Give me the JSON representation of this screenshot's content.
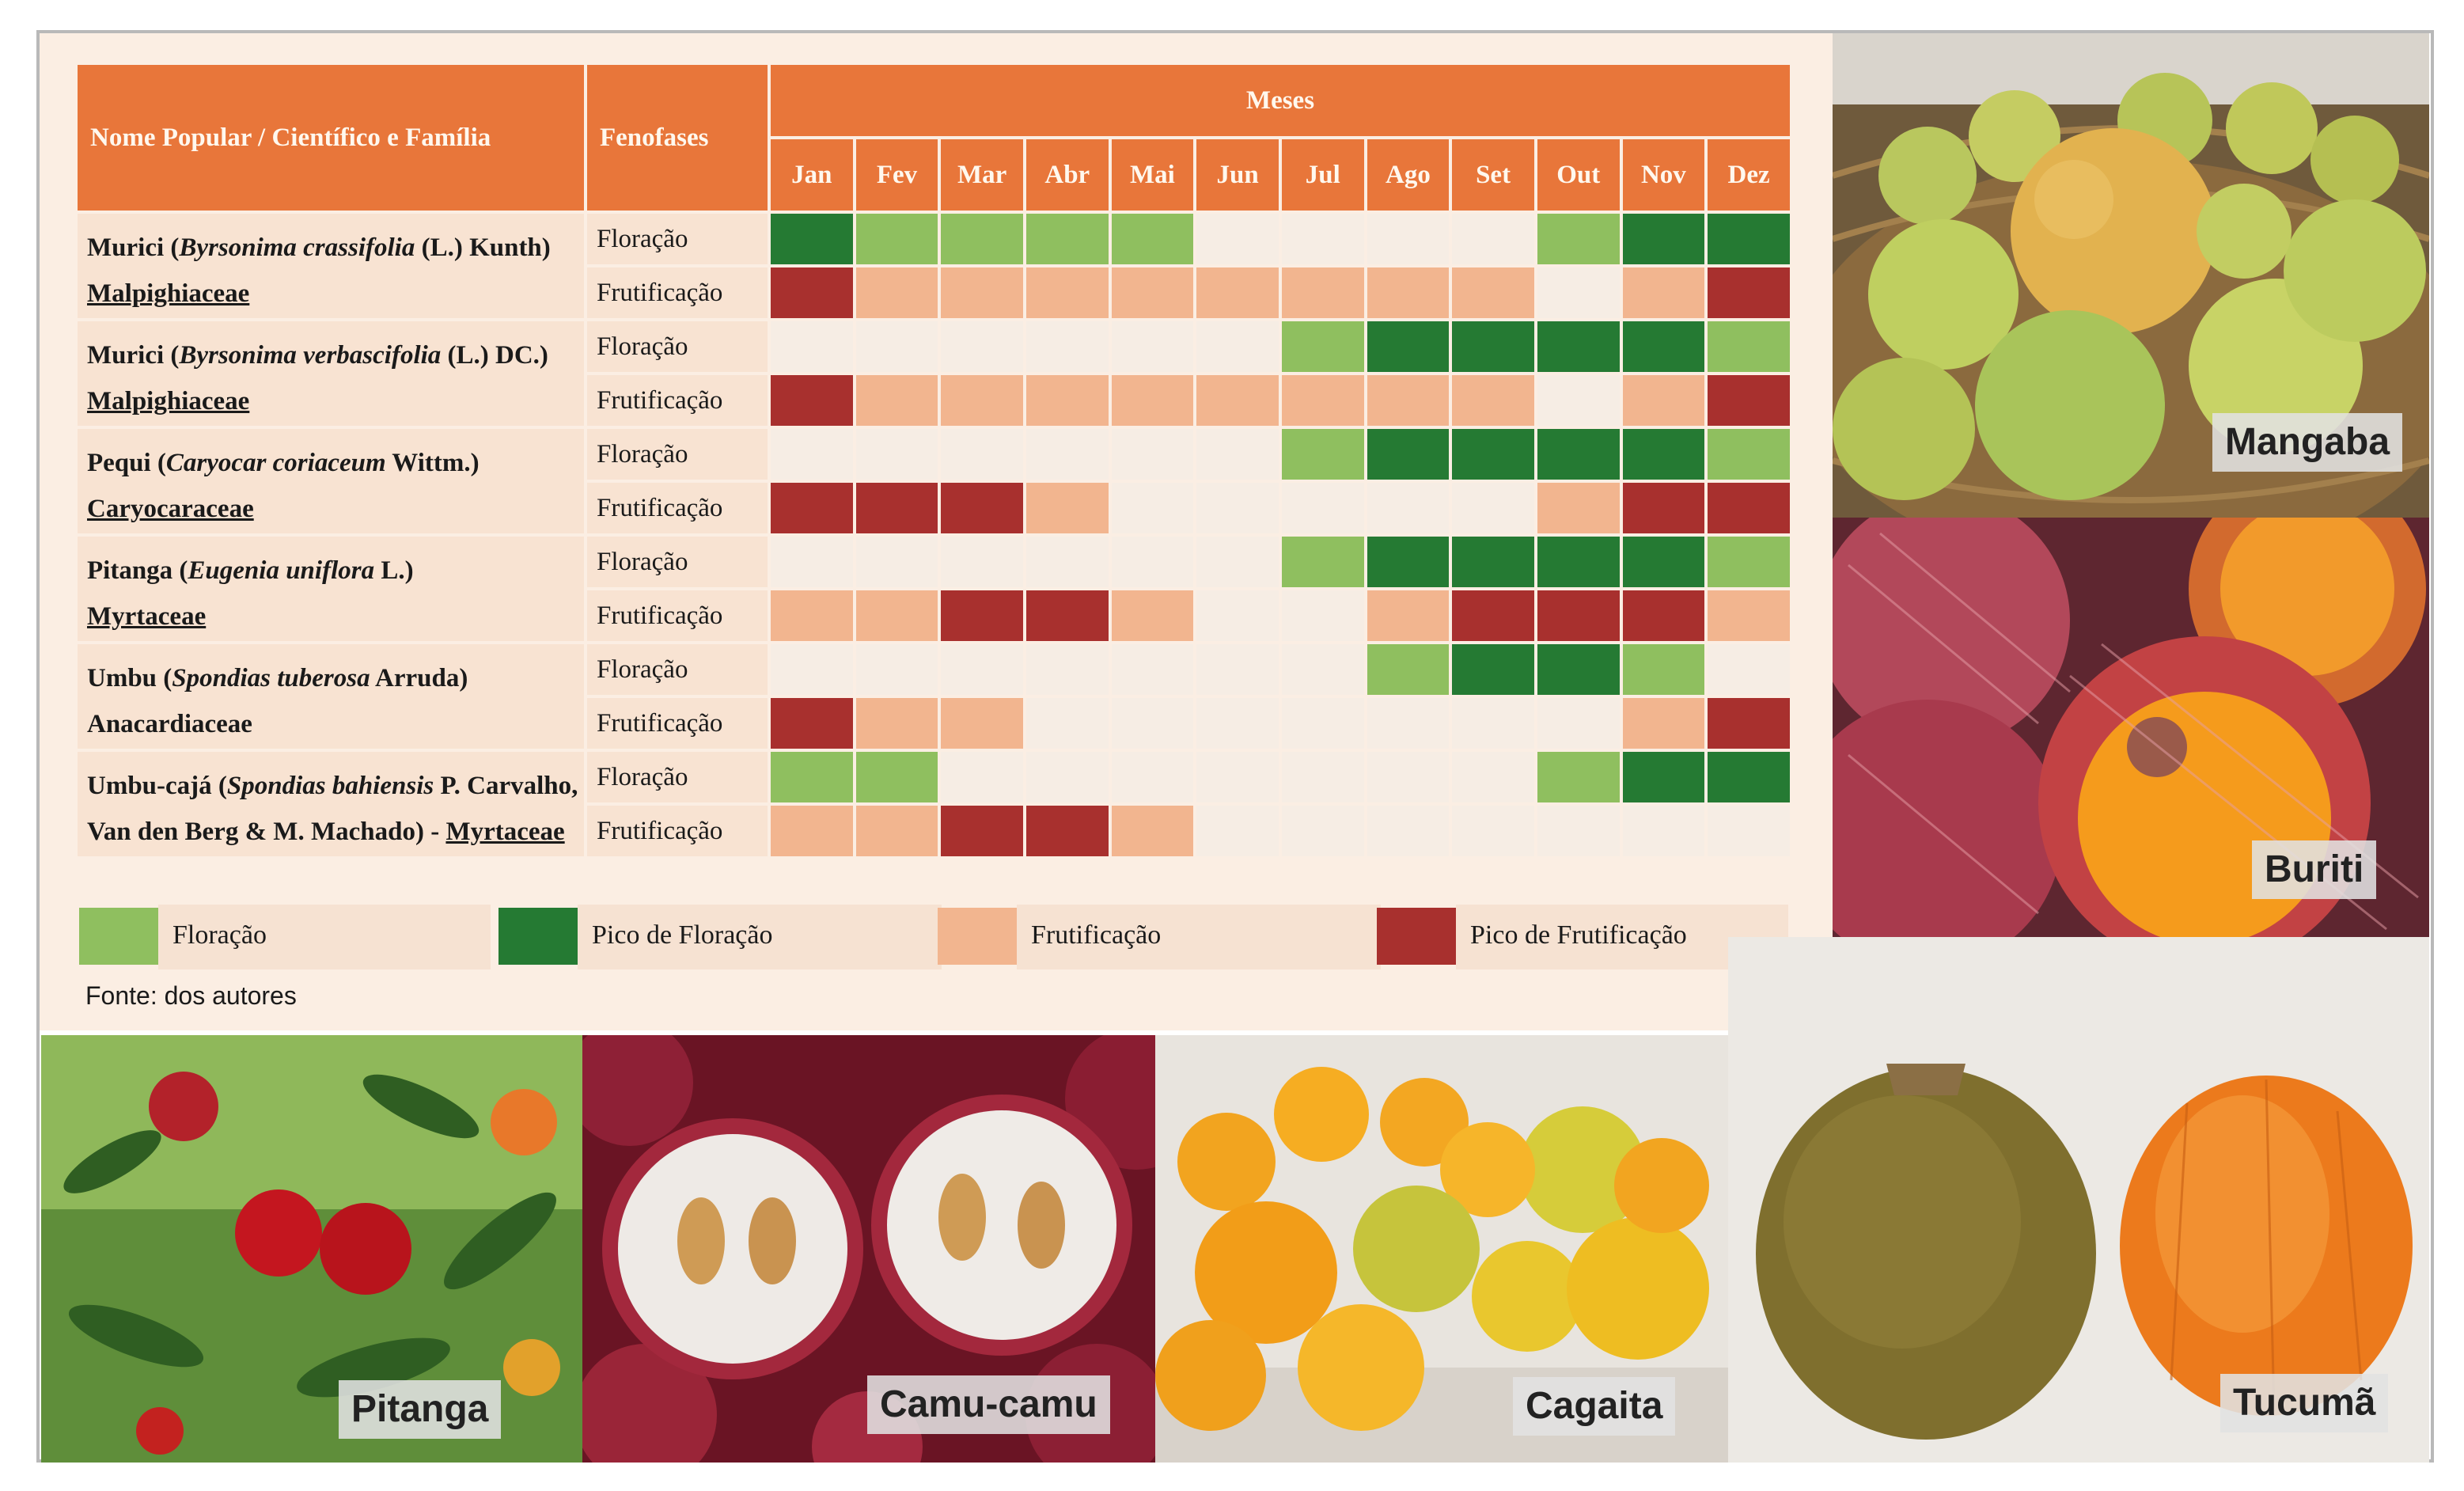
{
  "table": {
    "header_name": "Nome Popular / Científico e Família",
    "header_phase": "Fenofases",
    "header_months": "Meses",
    "months": [
      "Jan",
      "Fev",
      "Mar",
      "Abr",
      "Mai",
      "Jun",
      "Jul",
      "Ago",
      "Set",
      "Out",
      "Nov",
      "Dez"
    ],
    "species": [
      {
        "common": "Murici (",
        "sci": "Byrsonima crassifolia",
        "auth": " (L.) Kunth)",
        "family": "Malpighiaceae",
        "family_underlined": true,
        "flor": [
          2,
          1,
          1,
          1,
          1,
          0,
          0,
          0,
          0,
          1,
          2,
          2
        ],
        "frut": [
          4,
          3,
          3,
          3,
          3,
          3,
          3,
          3,
          3,
          0,
          3,
          4
        ]
      },
      {
        "common": "Murici (",
        "sci": "Byrsonima verbascifolia",
        "auth": " (L.) DC.)",
        "family": "Malpighiaceae",
        "family_underlined": true,
        "flor": [
          0,
          0,
          0,
          0,
          0,
          0,
          1,
          2,
          2,
          2,
          2,
          1
        ],
        "frut": [
          4,
          3,
          3,
          3,
          3,
          3,
          3,
          3,
          3,
          0,
          3,
          4
        ]
      },
      {
        "common": "Pequi (",
        "sci": "Caryocar coriaceum",
        "auth": " Wittm.)",
        "family": "Caryocaraceae",
        "family_underlined": true,
        "flor": [
          0,
          0,
          0,
          0,
          0,
          0,
          1,
          2,
          2,
          2,
          2,
          1
        ],
        "frut": [
          4,
          4,
          4,
          3,
          0,
          0,
          0,
          0,
          0,
          3,
          4,
          4
        ]
      },
      {
        "common": "Pitanga (",
        "sci": "Eugenia uniflora",
        "auth": " L.)",
        "family": "Myrtaceae",
        "family_underlined": true,
        "flor": [
          0,
          0,
          0,
          0,
          0,
          0,
          1,
          2,
          2,
          2,
          2,
          1
        ],
        "frut": [
          3,
          3,
          4,
          4,
          3,
          0,
          0,
          3,
          4,
          4,
          4,
          3
        ]
      },
      {
        "common": "Umbu (",
        "sci": "Spondias tuberosa",
        "auth": " Arruda)",
        "family": "Anacardiaceae",
        "family_underlined": false,
        "flor": [
          0,
          0,
          0,
          0,
          0,
          0,
          0,
          1,
          2,
          2,
          1,
          0
        ],
        "frut": [
          4,
          3,
          3,
          0,
          0,
          0,
          0,
          0,
          0,
          0,
          3,
          4
        ]
      },
      {
        "common": "Umbu-cajá (",
        "sci": "Spondias bahiensis",
        "auth": " P. Carvalho,",
        "line2": "Van den Berg & M. Machado) - ",
        "family": "Myrtaceae",
        "family_underlined": true,
        "flor": [
          1,
          1,
          0,
          0,
          0,
          0,
          0,
          0,
          0,
          1,
          2,
          2
        ],
        "frut": [
          3,
          3,
          4,
          4,
          3,
          0,
          0,
          0,
          0,
          0,
          0,
          0
        ]
      }
    ],
    "phase_flor": "Floração",
    "phase_frut": "Frutificação"
  },
  "legend": [
    {
      "label": "Floração",
      "color": "#8fbf5f"
    },
    {
      "label": "Pico de Floração",
      "color": "#257a33"
    },
    {
      "label": "Frutificação",
      "color": "#f2b58f"
    },
    {
      "label": "Pico de Frutificação",
      "color": "#a8302e"
    }
  ],
  "source": "Fonte: dos autores",
  "photos": {
    "mangaba": "Mangaba",
    "buriti": "Buriti",
    "pitanga": "Pitanga",
    "camucamu": "Camu-camu",
    "cagaita": "Cagaita",
    "tucuma": "Tucumã"
  }
}
